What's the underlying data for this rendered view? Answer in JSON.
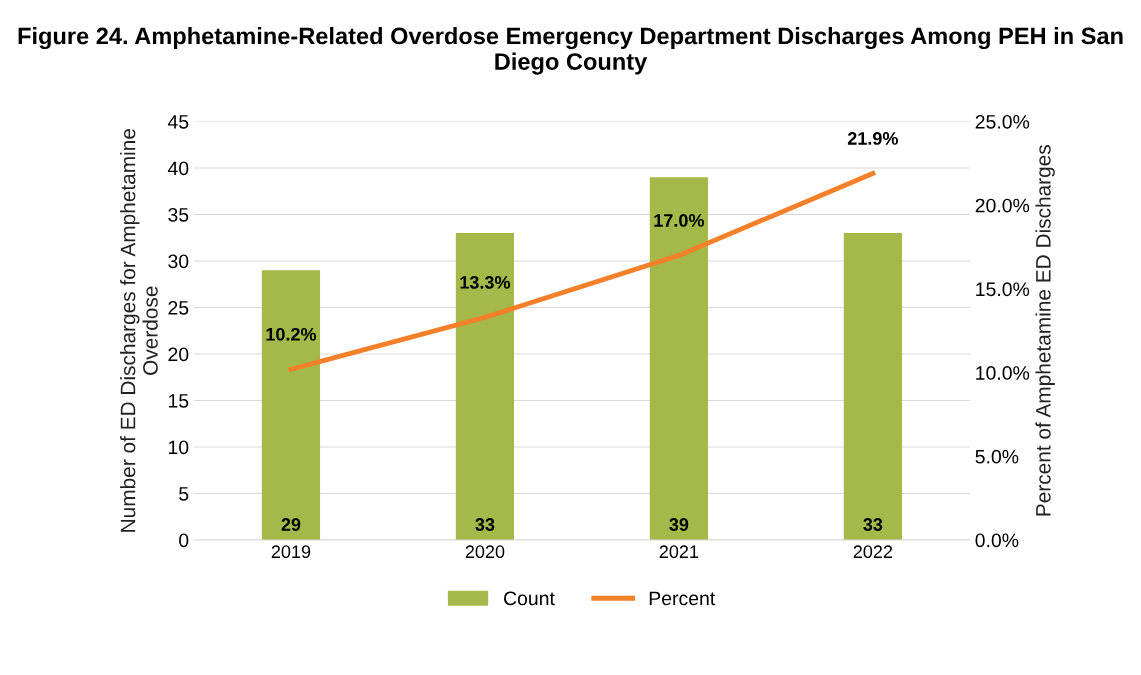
{
  "chart_data": {
    "type": "bar",
    "title": "Figure 24. Amphetamine-Related Overdose Emergency Department Discharges Among PEH in San Diego County",
    "categories": [
      "2019",
      "2020",
      "2021",
      "2022"
    ],
    "series": [
      {
        "name": "Count",
        "color": "#a5b94a",
        "values": [
          29,
          33,
          39,
          33
        ],
        "value_labels": [
          "29",
          "33",
          "39",
          "33"
        ]
      },
      {
        "name": "Percent",
        "type": "line",
        "axis": "y2",
        "color": "#f4812a",
        "values": [
          10.2,
          13.3,
          17.0,
          21.9
        ],
        "value_labels": [
          "10.2%",
          "13.3%",
          "17.0%",
          "21.9%"
        ]
      }
    ],
    "ylabel": "Number of ED Discharges for Amphetamine\nOverdose",
    "y2label": "Percent of Amphetamine ED Discharges",
    "ylim": [
      0,
      45
    ],
    "yticks": [
      0,
      5,
      10,
      15,
      20,
      25,
      30,
      35,
      40,
      45
    ],
    "y2lim": [
      0,
      25
    ],
    "y2ticks": [
      {
        "value": 0,
        "label": "0.0%"
      },
      {
        "value": 5,
        "label": "5.0%"
      },
      {
        "value": 10,
        "label": "10.0%"
      },
      {
        "value": 15,
        "label": "15.0%"
      },
      {
        "value": 20,
        "label": "20.0%"
      },
      {
        "value": 25,
        "label": "25.0%"
      }
    ],
    "grid": "y",
    "legend": "bottom",
    "marker": "none",
    "line_style": "solid"
  }
}
